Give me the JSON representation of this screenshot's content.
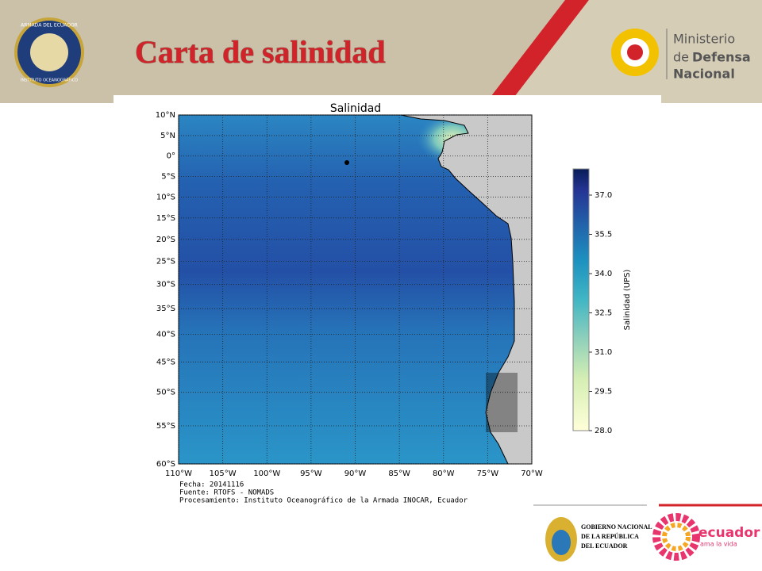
{
  "header": {
    "title": "Carta de salinidad",
    "left_logo": [
      "ARMADA DEL ECUADOR",
      "INSTITUTO OCEANOGRÁFICO"
    ],
    "right_logo": [
      "Ministerio",
      "de",
      "Defensa",
      "Nacional"
    ]
  },
  "map": {
    "title": "Salinidad",
    "latlim": [
      10,
      -60
    ],
    "lonlim": [
      -110,
      -70
    ],
    "lat_ticks": [
      {
        "value": 10,
        "label": "10°N"
      },
      {
        "value": 5,
        "label": "5°N"
      },
      {
        "value": 0,
        "label": "0°"
      },
      {
        "value": -5,
        "label": "5°S"
      },
      {
        "value": -10,
        "label": "10°S"
      },
      {
        "value": -15,
        "label": "15°S"
      },
      {
        "value": -20,
        "label": "20°S"
      },
      {
        "value": -25,
        "label": "25°S"
      },
      {
        "value": -30,
        "label": "30°S"
      },
      {
        "value": -35,
        "label": "35°S"
      },
      {
        "value": -40,
        "label": "40°S"
      },
      {
        "value": -45,
        "label": "45°S"
      },
      {
        "value": -50,
        "label": "50°S"
      },
      {
        "value": -55,
        "label": "55°S"
      },
      {
        "value": -60,
        "label": "60°S"
      }
    ],
    "lon_ticks": [
      {
        "value": -110,
        "label": "110°W"
      },
      {
        "value": -105,
        "label": "105°W"
      },
      {
        "value": -100,
        "label": "100°W"
      },
      {
        "value": -95,
        "label": "95°W"
      },
      {
        "value": -90,
        "label": "90°W"
      },
      {
        "value": -85,
        "label": "85°W"
      },
      {
        "value": -80,
        "label": "80°W"
      },
      {
        "value": -75,
        "label": "75°W"
      },
      {
        "value": -70,
        "label": "70°W"
      }
    ],
    "colorbar": {
      "label": "Salinidad (UPS)",
      "lim": [
        28,
        38
      ],
      "ticks": [
        {
          "value": 28,
          "label": "28.0"
        },
        {
          "value": 29.5,
          "label": "29.5"
        },
        {
          "value": 31,
          "label": "31.0"
        },
        {
          "value": 32.5,
          "label": "32.5"
        },
        {
          "value": 34,
          "label": "34.0"
        },
        {
          "value": 35.5,
          "label": "35.5"
        },
        {
          "value": 37,
          "label": "37.0"
        }
      ]
    },
    "notes": [
      "Fecha: 20141116",
      "Fuente: RTOFS - NOMADS",
      "Procesamiento: Instituto Oceanográfico de la Armada INOCAR, Ecuador"
    ]
  },
  "footer": {
    "gov": [
      "GOBIERNO NACIONAL",
      "DE LA REPÚBLICA",
      "DEL ECUADOR"
    ],
    "brand": "ecuador",
    "tagline": "ama la vida"
  }
}
